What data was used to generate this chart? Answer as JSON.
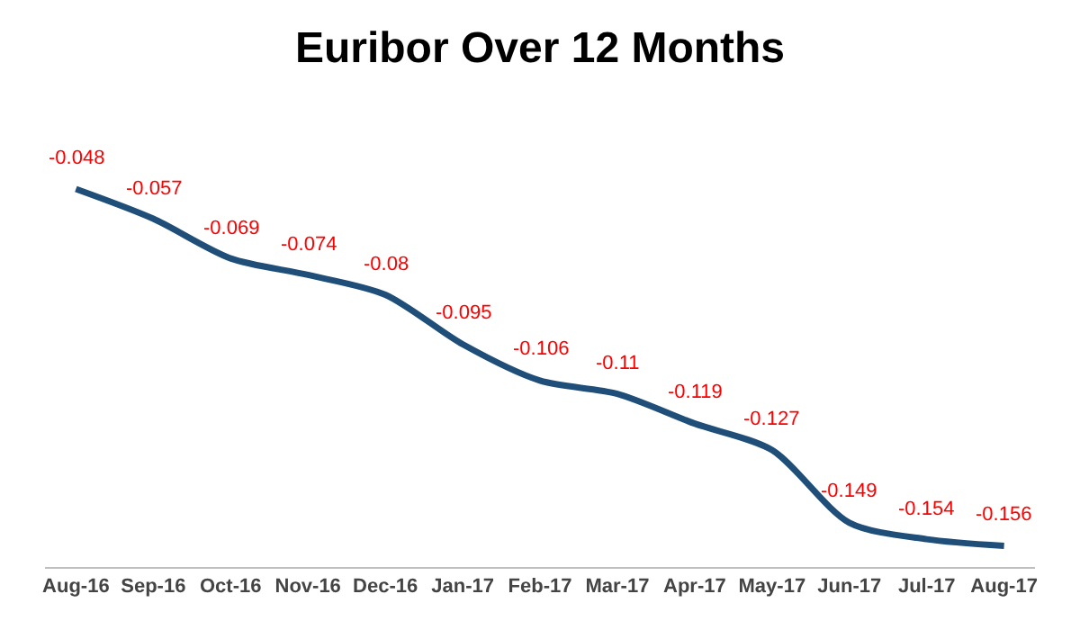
{
  "chart_data": {
    "type": "line",
    "title": "Euribor Over 12 Months",
    "categories": [
      "Aug-16",
      "Sep-16",
      "Oct-16",
      "Nov-16",
      "Dec-16",
      "Jan-17",
      "Feb-17",
      "Mar-17",
      "Apr-17",
      "May-17",
      "Jun-17",
      "Jul-17",
      "Aug-17"
    ],
    "series": [
      {
        "color": "#1f4e79",
        "values": [
          -0.048,
          -0.057,
          -0.069,
          -0.074,
          -0.08,
          -0.095,
          -0.106,
          -0.11,
          -0.119,
          -0.127,
          -0.149,
          -0.154,
          -0.156
        ]
      }
    ],
    "data_labels": true,
    "grid": false,
    "marker": "none",
    "line_style": "solid"
  }
}
